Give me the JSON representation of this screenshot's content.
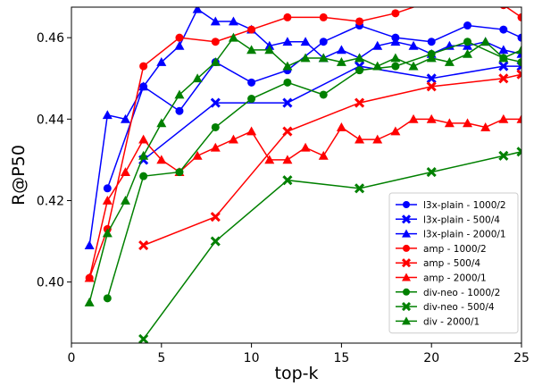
{
  "chart_data": {
    "type": "line",
    "title": "",
    "xlabel": "top-k",
    "ylabel": "R@P50",
    "xlim": [
      0,
      25
    ],
    "ylim": [
      0.385,
      0.4675
    ],
    "xticks": [
      "0",
      "5",
      "10",
      "15",
      "20",
      "25"
    ],
    "yticks": [
      "0.40",
      "0.42",
      "0.44",
      "0.46"
    ],
    "grid": false,
    "legend_position": "bottom-right",
    "series": [
      {
        "name": "l3x-plain - 1000/2",
        "color": "#0000ff",
        "marker": "circle",
        "x": [
          2,
          4,
          6,
          8,
          10,
          12,
          14,
          16,
          18,
          20,
          22,
          24,
          25
        ],
        "y": [
          0.423,
          0.448,
          0.442,
          0.454,
          0.449,
          0.452,
          0.459,
          0.463,
          0.46,
          0.459,
          0.463,
          0.462,
          0.46
        ]
      },
      {
        "name": "l3x-plain - 500/4",
        "color": "#0000ff",
        "marker": "x",
        "x": [
          4,
          8,
          12,
          16,
          20,
          24,
          25
        ],
        "y": [
          0.43,
          0.444,
          0.444,
          0.453,
          0.45,
          0.453,
          0.453
        ]
      },
      {
        "name": "l3x-plain - 2000/1",
        "color": "#0000ff",
        "marker": "triangle",
        "x": [
          1,
          2,
          3,
          4,
          5,
          6,
          7,
          8,
          9,
          10,
          11,
          12,
          13,
          14,
          15,
          16,
          17,
          18,
          19,
          20,
          21,
          22,
          23,
          24,
          25
        ],
        "y": [
          0.409,
          0.441,
          0.44,
          0.448,
          0.454,
          0.458,
          0.467,
          0.464,
          0.464,
          0.462,
          0.458,
          0.459,
          0.459,
          0.455,
          0.457,
          0.455,
          0.458,
          0.459,
          0.458,
          0.456,
          0.458,
          0.458,
          0.459,
          0.457,
          0.456
        ]
      },
      {
        "name": "amp - 1000/2",
        "color": "#ff0000",
        "marker": "circle",
        "x": [
          1,
          2,
          4,
          6,
          8,
          10,
          12,
          14,
          16,
          18,
          20,
          22,
          24,
          25
        ],
        "y": [
          0.401,
          0.413,
          0.453,
          0.46,
          0.459,
          0.462,
          0.465,
          0.465,
          0.464,
          0.466,
          0.469,
          0.47,
          0.468,
          0.465
        ]
      },
      {
        "name": "amp - 500/4",
        "color": "#ff0000",
        "marker": "x",
        "x": [
          4,
          8,
          12,
          16,
          20,
          24,
          25
        ],
        "y": [
          0.409,
          0.416,
          0.437,
          0.444,
          0.448,
          0.45,
          0.451
        ]
      },
      {
        "name": "amp - 2000/1",
        "color": "#ff0000",
        "marker": "triangle",
        "x": [
          1,
          2,
          3,
          4,
          5,
          6,
          7,
          8,
          9,
          10,
          11,
          12,
          13,
          14,
          15,
          16,
          17,
          18,
          19,
          20,
          21,
          22,
          23,
          24,
          25
        ],
        "y": [
          0.401,
          0.42,
          0.427,
          0.435,
          0.43,
          0.427,
          0.431,
          0.433,
          0.435,
          0.437,
          0.43,
          0.43,
          0.433,
          0.431,
          0.438,
          0.435,
          0.435,
          0.437,
          0.44,
          0.44,
          0.439,
          0.439,
          0.438,
          0.44,
          0.44
        ]
      },
      {
        "name": "div-neo - 1000/2",
        "color": "#008000",
        "marker": "circle",
        "x": [
          2,
          4,
          6,
          8,
          10,
          12,
          14,
          16,
          18,
          20,
          22,
          24,
          25
        ],
        "y": [
          0.396,
          0.426,
          0.427,
          0.438,
          0.445,
          0.449,
          0.446,
          0.452,
          0.453,
          0.456,
          0.459,
          0.455,
          0.454
        ]
      },
      {
        "name": "div-neo - 500/4",
        "color": "#008000",
        "marker": "x",
        "x": [
          4,
          8,
          12,
          16,
          20,
          24,
          25
        ],
        "y": [
          0.386,
          0.41,
          0.425,
          0.423,
          0.427,
          0.431,
          0.432
        ]
      },
      {
        "name": "div - 2000/1",
        "color": "#008000",
        "marker": "triangle",
        "x": [
          1,
          2,
          3,
          4,
          5,
          6,
          7,
          8,
          9,
          10,
          11,
          12,
          13,
          14,
          15,
          16,
          17,
          18,
          19,
          20,
          21,
          22,
          23,
          24,
          25
        ],
        "y": [
          0.395,
          0.412,
          0.42,
          0.431,
          0.439,
          0.446,
          0.45,
          0.454,
          0.46,
          0.457,
          0.457,
          0.453,
          0.455,
          0.455,
          0.454,
          0.455,
          0.453,
          0.455,
          0.453,
          0.455,
          0.454,
          0.456,
          0.459,
          0.455,
          0.457
        ]
      }
    ]
  }
}
